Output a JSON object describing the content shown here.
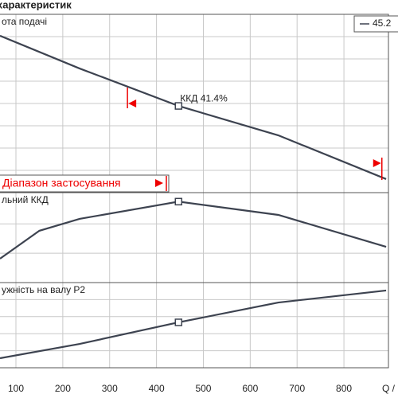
{
  "title": "характеристик",
  "chart_data": [
    {
      "type": "line",
      "label": "ота подачі",
      "x": [
        66,
        236,
        447,
        660,
        890
      ],
      "xlim": [
        66,
        895
      ],
      "xticks": [
        100,
        200,
        300,
        400,
        500,
        600,
        700,
        800
      ],
      "series": [
        {
          "name": "45.2",
          "color": "#3d4350",
          "values": [
            7.04,
            5.57,
            3.89,
            2.57,
            0.61
          ]
        }
      ],
      "ylim": [
        0,
        8
      ],
      "yticks": [
        1,
        2,
        3,
        4,
        5,
        6,
        7
      ],
      "grid": true,
      "annotation": "ККД  41.4%",
      "range_label": "Діапазон застосування",
      "range": [
        338,
        881
      ]
    },
    {
      "type": "line",
      "label": "льний ККД",
      "x": [
        66,
        150,
        236,
        447,
        660,
        890
      ],
      "xlim": [
        66,
        895
      ],
      "xticks": [
        100,
        200,
        300,
        400,
        500,
        600,
        700,
        800
      ],
      "series": [
        {
          "color": "#3d4350",
          "values": [
            12.2,
            26.5,
            32.6,
            41.4,
            34.6,
            18.3
          ]
        }
      ],
      "ylim": [
        0,
        46
      ],
      "yticks": [
        15,
        30
      ],
      "grid": true
    },
    {
      "type": "line",
      "label": "ужність на валу P2",
      "x": [
        66,
        236,
        447,
        660,
        890
      ],
      "xlim": [
        66,
        895
      ],
      "xticks": [
        100,
        200,
        300,
        400,
        500,
        600,
        700,
        800
      ],
      "series": [
        {
          "color": "#3d4350",
          "values": [
            1.12,
            2.8,
            5.33,
            7.66,
            9.07
          ]
        }
      ],
      "ylim": [
        0,
        10
      ],
      "yticks": [
        2,
        4,
        6,
        8
      ],
      "grid": true,
      "xlabel": "Q /"
    }
  ]
}
